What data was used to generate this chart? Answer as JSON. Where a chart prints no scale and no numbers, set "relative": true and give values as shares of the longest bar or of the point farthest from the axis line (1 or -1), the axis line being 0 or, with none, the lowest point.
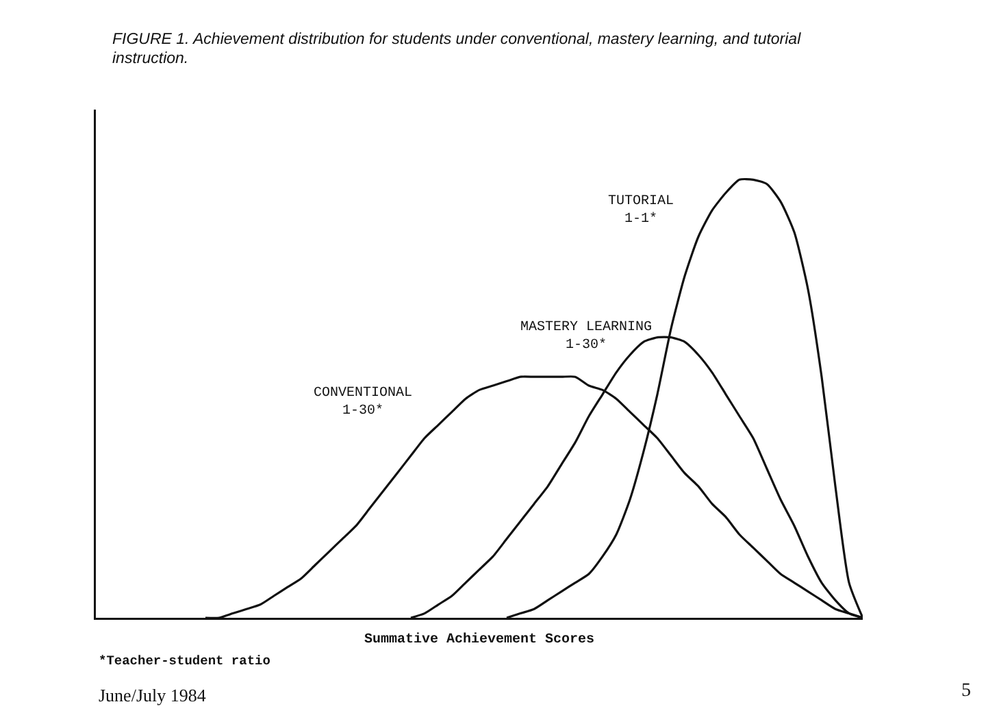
{
  "chart_data": {
    "type": "line",
    "relative": true,
    "title": "FIGURE 1. Achievement distribution for students under conventional, mastery learning, and tutorial instruction.",
    "xlabel": "Summative Achievement Scores",
    "legend": false,
    "marker": "none",
    "line_style": "solid",
    "annotations": [
      "*Teacher-student ratio",
      "June/July 1984",
      "5"
    ],
    "categories": [
      null,
      null,
      null,
      null,
      null,
      null,
      null,
      null,
      null,
      null,
      null,
      null,
      null,
      null,
      null,
      null,
      null,
      null,
      null,
      null,
      null,
      null,
      null,
      null,
      null,
      null,
      null,
      null,
      null,
      null,
      null,
      null,
      null,
      null,
      null,
      null,
      null,
      null,
      null,
      null,
      null,
      null,
      null,
      null,
      null,
      null,
      null,
      null,
      null,
      null,
      null,
      null,
      null,
      null,
      null,
      null,
      null
    ],
    "series": [
      {
        "name": "CONVENTIONAL\n1-30*",
        "color": "#111111",
        "values": [
          null,
          null,
          null,
          null,
          null,
          null,
          null,
          null,
          0,
          0,
          0.01,
          0.02,
          0.03,
          0.05,
          0.07,
          0.09,
          0.12,
          0.15,
          0.18,
          0.21,
          0.25,
          0.29,
          0.33,
          0.37,
          0.41,
          0.44,
          0.47,
          0.5,
          0.52,
          0.53,
          0.54,
          0.55,
          0.55,
          0.55,
          0.55,
          0.55,
          0.53,
          0.52,
          0.5,
          0.47,
          0.44,
          0.41,
          0.37,
          0.33,
          0.3,
          0.26,
          0.23,
          0.19,
          0.16,
          0.13,
          0.1,
          0.08,
          0.06,
          0.04,
          0.02,
          0.01,
          0
        ]
      },
      {
        "name": "MASTERY LEARNING\n1-30*",
        "color": "#111111",
        "values": [
          null,
          null,
          null,
          null,
          null,
          null,
          null,
          null,
          null,
          null,
          null,
          null,
          null,
          null,
          null,
          null,
          null,
          null,
          null,
          null,
          null,
          null,
          null,
          0,
          0.01,
          0.03,
          0.05,
          0.08,
          0.11,
          0.14,
          0.18,
          0.22,
          0.26,
          0.3,
          0.35,
          0.4,
          0.46,
          0.51,
          0.56,
          0.6,
          0.63,
          0.64,
          0.64,
          0.63,
          0.6,
          0.56,
          0.51,
          0.46,
          0.41,
          0.34,
          0.27,
          0.21,
          0.14,
          0.08,
          0.04,
          0.01,
          0
        ]
      },
      {
        "name": "TUTORIAL\n1-1*",
        "color": "#111111",
        "values": [
          null,
          null,
          null,
          null,
          null,
          null,
          null,
          null,
          null,
          null,
          null,
          null,
          null,
          null,
          null,
          null,
          null,
          null,
          null,
          null,
          null,
          null,
          null,
          null,
          null,
          null,
          null,
          null,
          null,
          null,
          0,
          0.01,
          0.02,
          0.04,
          0.06,
          0.08,
          0.1,
          0.14,
          0.19,
          0.27,
          0.38,
          0.51,
          0.66,
          0.78,
          0.87,
          0.93,
          0.97,
          1,
          1,
          0.99,
          0.95,
          0.88,
          0.75,
          0.55,
          0.3,
          0.08,
          0
        ]
      }
    ]
  }
}
